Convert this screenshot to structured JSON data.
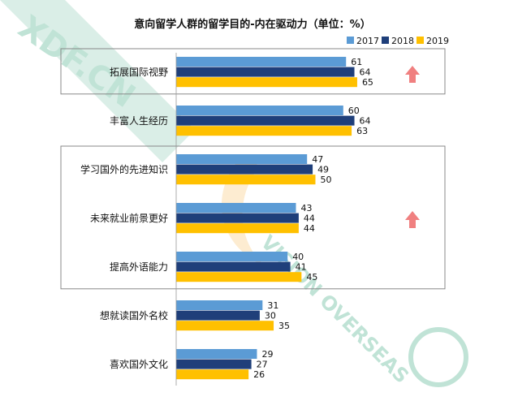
{
  "chart_data": {
    "type": "bar",
    "orientation": "horizontal",
    "title": "意向留学人群的留学目的-内在驱动力（单位：%）",
    "categories": [
      "拓展国际视野",
      "丰富人生经历",
      "学习国外的先进知识",
      "未来就业前景更好",
      "提高外语能力",
      "想就读国外名校",
      "喜欢国外文化"
    ],
    "series": [
      {
        "name": "2017",
        "values": [
          61,
          60,
          47,
          43,
          40,
          31,
          29
        ]
      },
      {
        "name": "2018",
        "values": [
          64,
          64,
          49,
          44,
          41,
          30,
          27
        ]
      },
      {
        "name": "2019",
        "values": [
          65,
          63,
          50,
          44,
          45,
          35,
          26
        ]
      }
    ],
    "colors": [
      "#5b9bd5",
      "#1f3f7a",
      "#ffc000"
    ],
    "xlim": [
      0,
      70
    ],
    "legend_position": "top-right",
    "grid": false,
    "highlight_boxes": [
      {
        "categories": [
          "拓展国际视野"
        ]
      },
      {
        "categories": [
          "学习国外的先进知识",
          "未来就业前景更好",
          "提高外语能力"
        ]
      }
    ],
    "arrow_color": "#f08080"
  },
  "watermark": {
    "logo_text": "XDF.CN",
    "brand_text": "VISION OVERSEAS",
    "color": "#4caf8a"
  }
}
